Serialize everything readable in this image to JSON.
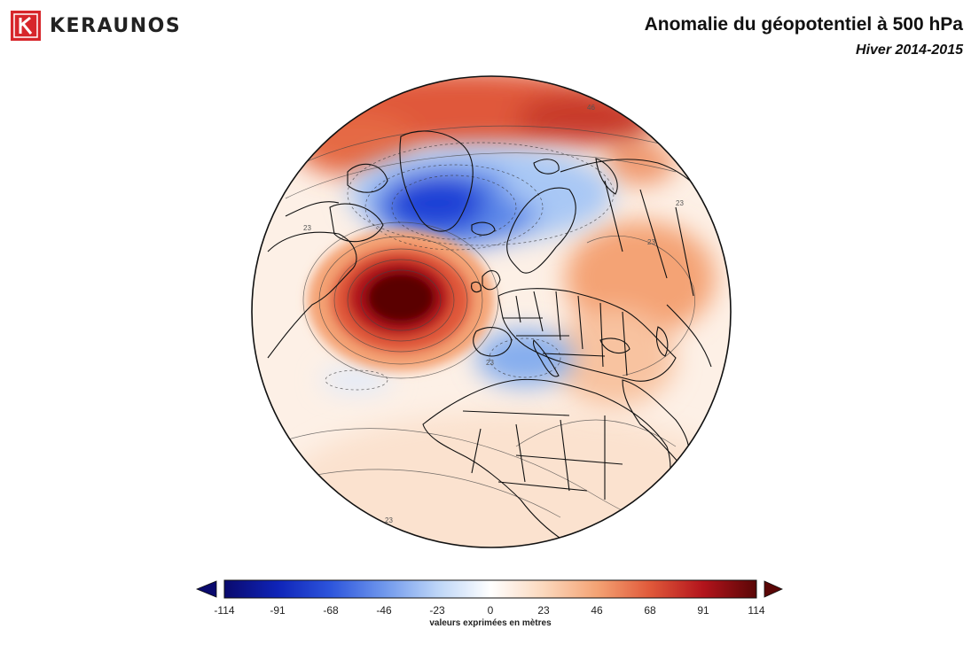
{
  "brand": {
    "name": "KERAUNOS",
    "logo_icon": "keraunos-k-logo",
    "logo_color": "#d7262b"
  },
  "header": {
    "title": "Anomalie du géopotentiel à 500 hPa",
    "subtitle": "Hiver 2014-2015"
  },
  "map": {
    "projection": "orthographic",
    "contour_labels": [
      "23",
      "23",
      "23",
      "46",
      "23",
      "23"
    ]
  },
  "colorbar": {
    "ticks": [
      "-114",
      "-91",
      "-68",
      "-46",
      "-23",
      "0",
      "23",
      "46",
      "68",
      "91",
      "114"
    ],
    "caption": "valeurs exprimées en mètres",
    "colors": [
      "#0a0a6e",
      "#1d3fd6",
      "#5a86e8",
      "#a9c8f5",
      "#ffffff",
      "#fbd8bd",
      "#f4a374",
      "#e0593a",
      "#b3141c",
      "#5a0606"
    ]
  }
}
